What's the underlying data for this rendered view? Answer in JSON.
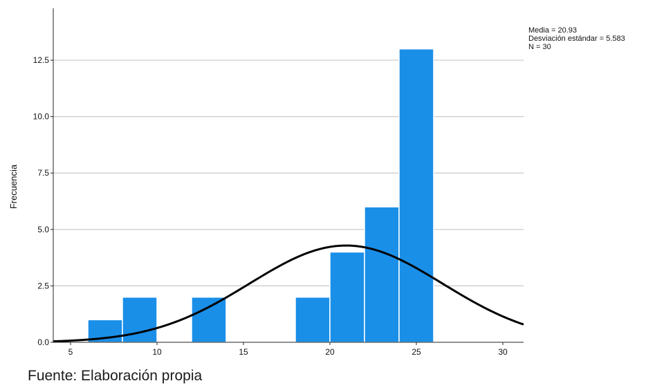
{
  "chart_data": {
    "type": "bar",
    "subtype": "histogram",
    "ylabel": "Frecuencia",
    "xlabel": "",
    "xlim": [
      4,
      31.2
    ],
    "ylim": [
      0,
      14.8
    ],
    "xticks": [
      5,
      10,
      15,
      20,
      25,
      30
    ],
    "xtick_labels": [
      "5",
      "10",
      "15",
      "20",
      "25",
      "30"
    ],
    "yticks": [
      0,
      2.5,
      5,
      7.5,
      10,
      12.5
    ],
    "ytick_labels": [
      "0.0",
      "2.5",
      "5.0",
      "7.5",
      "10.0",
      "12.5"
    ],
    "bin_width": 2,
    "bin_starts": [
      6,
      8,
      12,
      18,
      20,
      22,
      24
    ],
    "counts": [
      1,
      2,
      2,
      2,
      4,
      6,
      13
    ],
    "grid": "horizontal",
    "normal_curve": {
      "mean": 20.93,
      "sd": 5.583,
      "n": 30
    },
    "stats": {
      "mean_label": "Media = 20.93",
      "sd_label": "Desviación estándar = 5.583",
      "n_label": "N = 30"
    },
    "colors": {
      "bar": "#1a8fe8",
      "bar_edge": "#ffffff",
      "curve": "#000000",
      "grid": "#c8c8c8",
      "axis": "#222222"
    }
  },
  "footer": {
    "source": "Fuente: Elaboración propia"
  }
}
